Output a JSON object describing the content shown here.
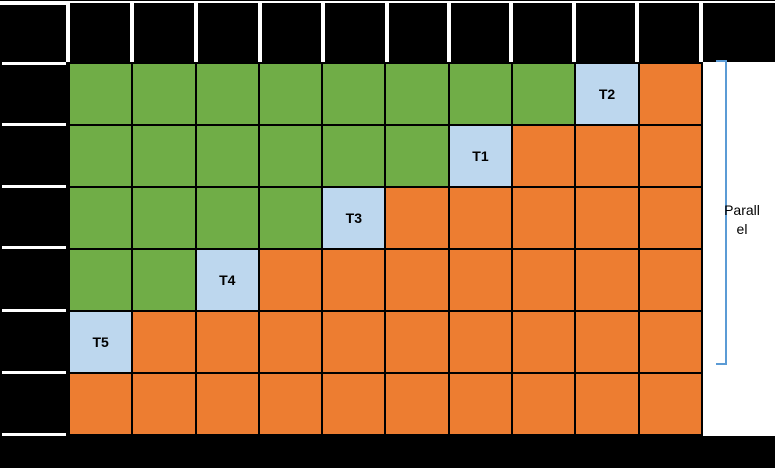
{
  "colors": {
    "green": "#70AD47",
    "orange": "#ED7D31",
    "task_fill": "#BDD7EE",
    "bracket": "#5B9BD5",
    "frame": "#000000"
  },
  "grid": {
    "columns": 10,
    "row_count": 6,
    "cell_types": {
      "G": "green-block",
      "O": "orange-block",
      "T": "task-block"
    },
    "rows": [
      [
        "G",
        "G",
        "G",
        "G",
        "G",
        "G",
        "G",
        "G",
        "T2",
        "O"
      ],
      [
        "G",
        "G",
        "G",
        "G",
        "G",
        "G",
        "T1",
        "O",
        "O",
        "O"
      ],
      [
        "G",
        "G",
        "G",
        "G",
        "T3",
        "O",
        "O",
        "O",
        "O",
        "O"
      ],
      [
        "G",
        "G",
        "T4",
        "O",
        "O",
        "O",
        "O",
        "O",
        "O",
        "O"
      ],
      [
        "T5",
        "O",
        "O",
        "O",
        "O",
        "O",
        "O",
        "O",
        "O",
        "O"
      ],
      [
        "O",
        "O",
        "O",
        "O",
        "O",
        "O",
        "O",
        "O",
        "O",
        "O"
      ]
    ]
  },
  "annotation": {
    "text": "Parallel",
    "lines": [
      "Parall",
      "el"
    ]
  }
}
